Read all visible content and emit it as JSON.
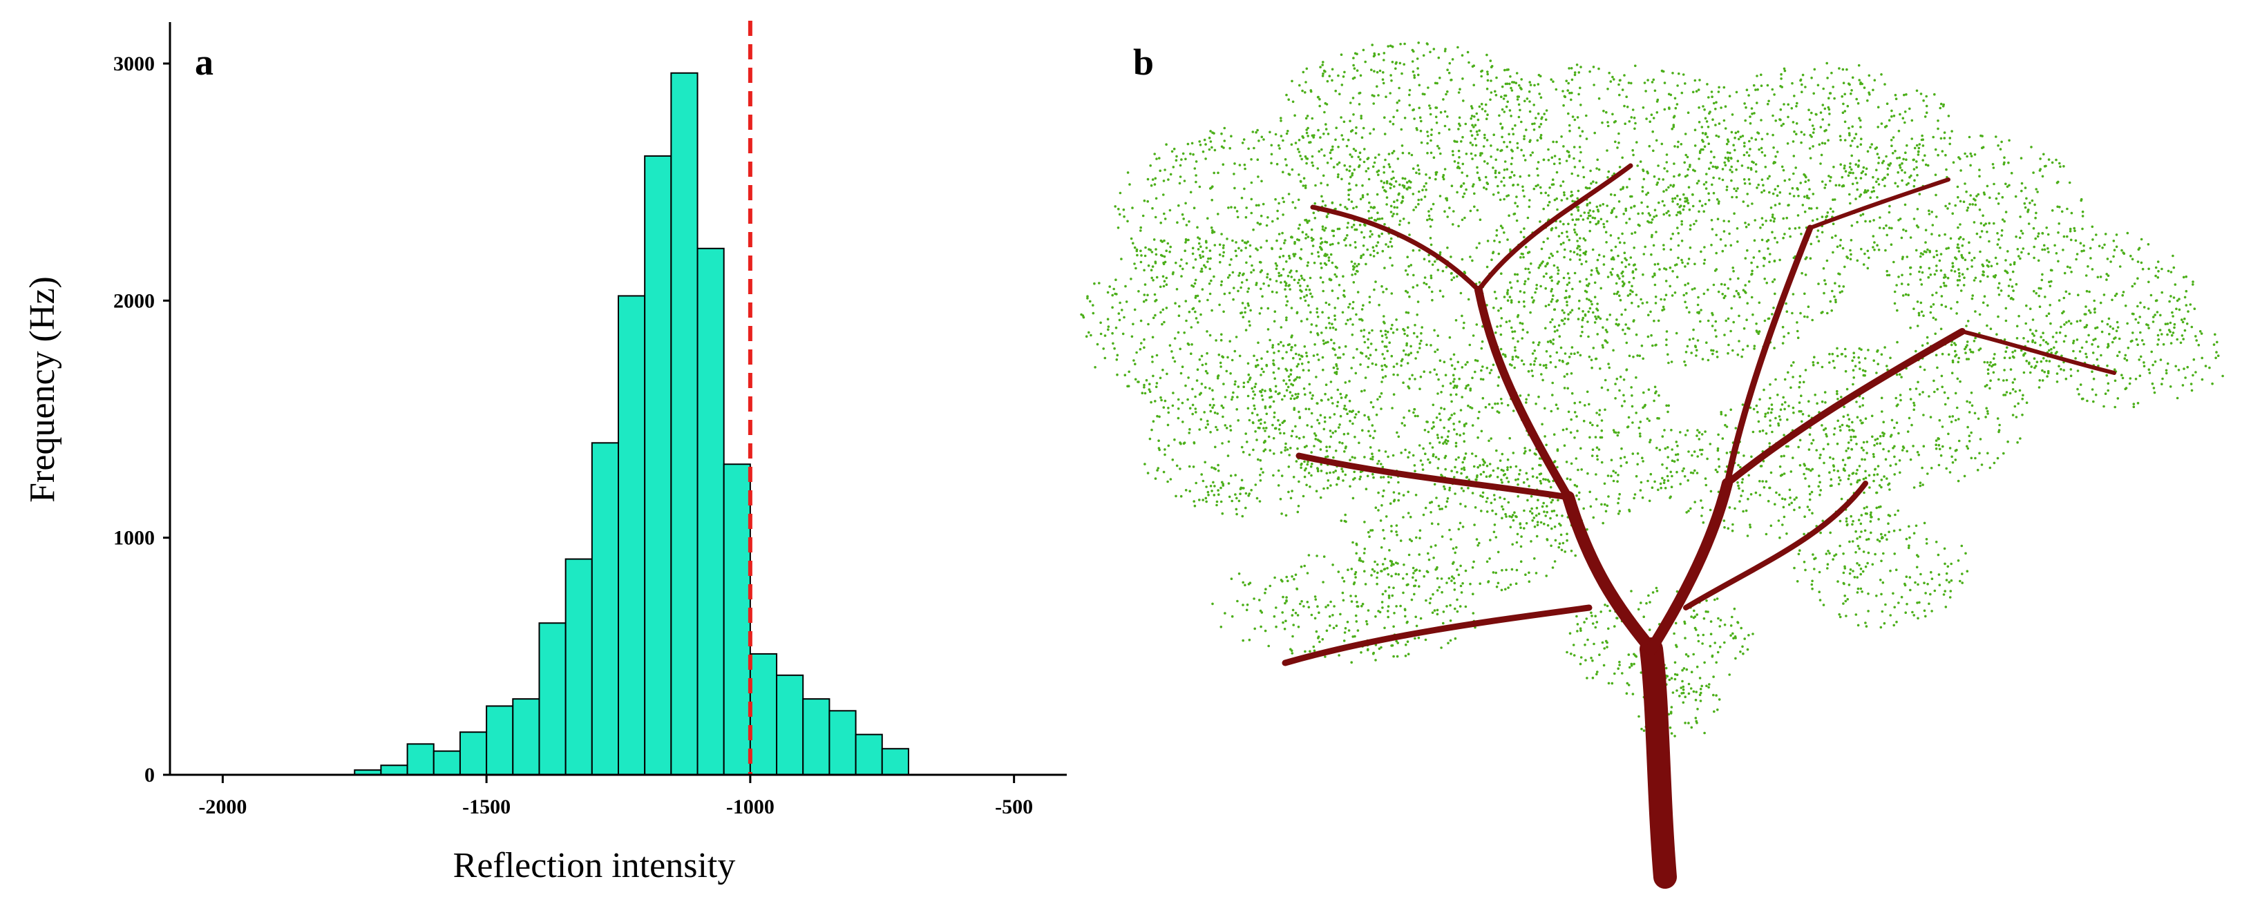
{
  "panels": {
    "a": {
      "label": "a"
    },
    "b": {
      "label": "b"
    }
  },
  "chart_data": {
    "type": "bar",
    "title": "",
    "xlabel": "Reflection intensity",
    "ylabel": "Frequency (Hz)",
    "xlim": [
      -2100,
      -400
    ],
    "ylim": [
      0,
      3000
    ],
    "xticks": [
      -2000,
      -1500,
      -1000,
      -500
    ],
    "yticks": [
      0,
      1000,
      2000,
      3000
    ],
    "grid": false,
    "bin_width": 50,
    "bar_color": "#1de9c3",
    "bar_edge_color": "#000000",
    "bins": [
      {
        "x": -1725,
        "value": 20
      },
      {
        "x": -1675,
        "value": 40
      },
      {
        "x": -1625,
        "value": 130
      },
      {
        "x": -1575,
        "value": 100
      },
      {
        "x": -1525,
        "value": 180
      },
      {
        "x": -1475,
        "value": 290
      },
      {
        "x": -1425,
        "value": 320
      },
      {
        "x": -1375,
        "value": 640
      },
      {
        "x": -1325,
        "value": 910
      },
      {
        "x": -1275,
        "value": 1400
      },
      {
        "x": -1225,
        "value": 2020
      },
      {
        "x": -1175,
        "value": 2610
      },
      {
        "x": -1125,
        "value": 2960
      },
      {
        "x": -1075,
        "value": 2220
      },
      {
        "x": -1025,
        "value": 1310
      },
      {
        "x": -975,
        "value": 510
      },
      {
        "x": -925,
        "value": 420
      },
      {
        "x": -875,
        "value": 320
      },
      {
        "x": -825,
        "value": 270
      },
      {
        "x": -775,
        "value": 170
      },
      {
        "x": -725,
        "value": 110
      }
    ],
    "threshold": {
      "x": -1000,
      "style": "dashed",
      "color": "#e8221e"
    }
  },
  "tree": {
    "leaf_color": "#4caf1a",
    "wood_color": "#7a0c0c"
  }
}
